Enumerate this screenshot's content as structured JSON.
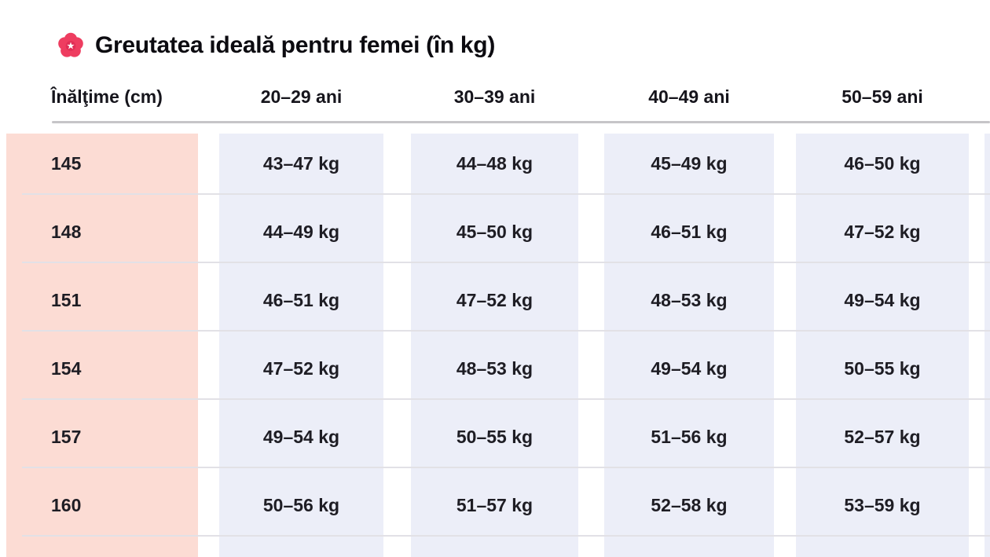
{
  "title": {
    "icon": "cherry-blossom-flower",
    "text": "Greutatea ideală pentru femei (în kg)"
  },
  "colors": {
    "page_bg": "#ffffff",
    "height_column_bg": "#fcdcd4",
    "age_column_bg": "#eceef8",
    "flower_pink": "#ee3d60",
    "header_rule": "#c6c5c8",
    "row_rule": "#e2e1e6",
    "text": "#1e1d24"
  },
  "chart_data": {
    "type": "table",
    "title": "Greutatea ideală pentru femei (în kg)",
    "columns": [
      "Înălţime (cm)",
      "20–29 ani",
      "30–39 ani",
      "40–49 ani",
      "50–59 ani"
    ],
    "rows": [
      [
        "145",
        "43–47 kg",
        "44–48 kg",
        "45–49 kg",
        "46–50 kg"
      ],
      [
        "148",
        "44–49 kg",
        "45–50 kg",
        "46–51 kg",
        "47–52 kg"
      ],
      [
        "151",
        "46–51 kg",
        "47–52 kg",
        "48–53 kg",
        "49–54 kg"
      ],
      [
        "154",
        "47–52 kg",
        "48–53 kg",
        "49–54 kg",
        "50–55 kg"
      ],
      [
        "157",
        "49–54 kg",
        "50–55 kg",
        "51–56 kg",
        "52–57 kg"
      ],
      [
        "160",
        "50–56 kg",
        "51–57 kg",
        "52–58 kg",
        "53–59 kg"
      ]
    ],
    "layout_hints": {
      "first_column_highlight": "pink",
      "value_columns_highlight": "lavender",
      "partial_seventh_row_visible_at_bottom": true,
      "sixth_value_column_cut_off_at_right_edge": true
    }
  }
}
